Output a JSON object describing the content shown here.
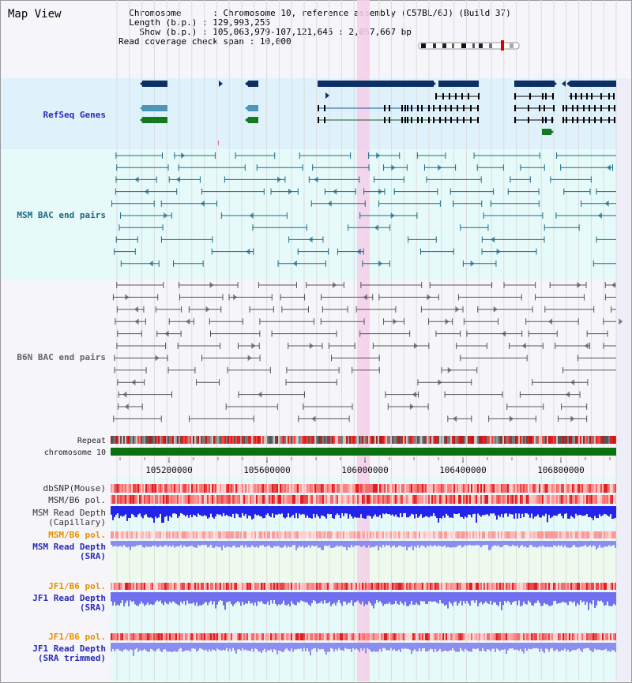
{
  "map_title": "Map View",
  "info": {
    "chromosome_label": "Chromosome",
    "chromosome_value": "Chromosome 10, reference assembly (C57BL/6J) (Build 37)",
    "length_label": "Length (b.p.)",
    "length_value": "129,993,255",
    "show_label": "Show (b.p.)",
    "show_value": "105,063,979-107,121,645 : 2,057,667 bp",
    "coverage_label": "Read coverage check span",
    "coverage_value": "10,000"
  },
  "tracks": {
    "refseq": "RefSeq Genes",
    "msm_bac": "MSM BAC end pairs",
    "b6n_bac": "B6N BAC end pairs",
    "repeat": "Repeat",
    "chromosome": "chromosome 10",
    "dbsnp": "dbSNP(Mouse)",
    "msm_b6_pol": "MSM/B6 pol.",
    "msm_depth_cap_1": "MSM Read Depth",
    "msm_depth_cap_2": "(Capillary)",
    "msm_b6_pol_2": "MSM/B6 pol.",
    "msm_depth_sra_1": "MSM Read Depth",
    "msm_depth_sra_2": "(SRA)",
    "jf1_pol_1": "JF1/B6 pol.",
    "jf1_depth_sra_1": "JF1 Read Depth",
    "jf1_depth_sra_2": "(SRA)",
    "jf1_pol_2": "JF1/B6 pol.",
    "jf1_depth_trim_1": "JF1 Read Depth",
    "jf1_depth_trim_2": "(SRA trimmed)"
  },
  "axis": {
    "ticks": [
      "105200000",
      "105600000",
      "106000000",
      "106400000",
      "106800000"
    ]
  },
  "colors": {
    "refseq_bg": "#dff2fb",
    "msm_bg": "#e6fafa",
    "highlight": "#f7d4ee",
    "gene_dark": "#0c2f66",
    "gene_mid": "#4a97b9",
    "gene_green": "#157a1d",
    "msm_line": "#1a6a88",
    "b6n_line": "#555555",
    "chromosome_bar": "#0a7010",
    "depth_blue": "#2424e8",
    "depth_light": "#8d8df0"
  }
}
